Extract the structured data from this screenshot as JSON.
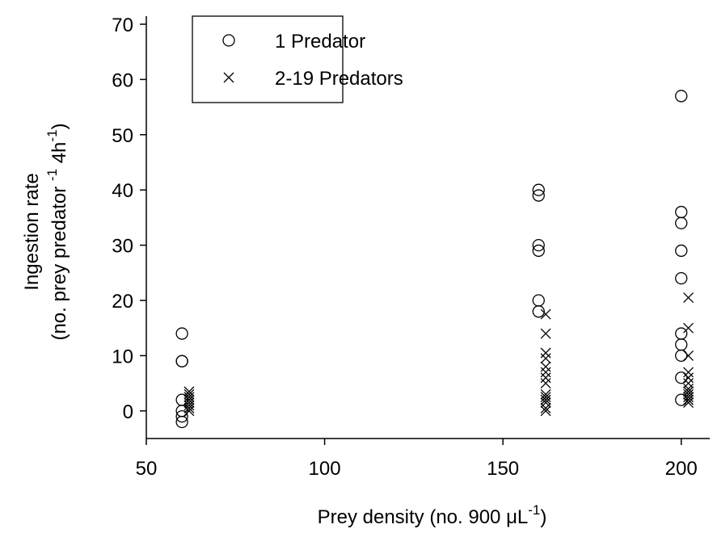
{
  "chart_data": {
    "type": "scatter",
    "x_label": [
      "Prey density (no. 900 μL",
      "-1",
      ")"
    ],
    "y_label": [
      [
        "Ingestion rate"
      ],
      [
        "(no. prey predator ",
        "-1",
        " 4h",
        "-1",
        ")"
      ]
    ],
    "xlim": [
      50,
      208
    ],
    "xticks": [
      50,
      100,
      150,
      200
    ],
    "ylim": [
      -5,
      70
    ],
    "yticks": [
      0,
      10,
      20,
      30,
      40,
      50,
      60,
      70
    ],
    "legend": "upper left",
    "series": [
      {
        "name": "1 Predator",
        "marker": "circle",
        "color": "#000000",
        "x": [
          60,
          60,
          60,
          60,
          60,
          60,
          60,
          160,
          160,
          160,
          160,
          160,
          160,
          200,
          200,
          200,
          200,
          200,
          200,
          200,
          200,
          200,
          200
        ],
        "values": [
          14,
          9,
          9,
          2,
          0,
          -1,
          -2,
          40,
          39,
          30,
          29,
          20,
          18,
          57,
          36,
          34,
          29,
          24,
          14,
          12,
          10,
          6,
          2
        ]
      },
      {
        "name": "2-19 Predators",
        "marker": "x",
        "color": "#000000",
        "x": [
          62,
          62,
          62,
          62,
          62,
          62,
          62,
          62,
          162,
          162,
          162,
          162,
          162,
          162,
          162,
          162,
          162,
          162,
          162,
          162,
          162,
          162,
          202,
          202,
          202,
          202,
          202,
          202,
          202,
          202,
          202,
          202,
          202,
          202
        ],
        "values": [
          0,
          0.5,
          1,
          1.5,
          2,
          2.5,
          3,
          3.5,
          17.5,
          14,
          10.5,
          9.5,
          8,
          7,
          6,
          5,
          3,
          2.5,
          2,
          1.5,
          0.5,
          0,
          20.5,
          15,
          10,
          7,
          6,
          5,
          4,
          3.5,
          3,
          2.5,
          2,
          1.5
        ]
      }
    ]
  }
}
